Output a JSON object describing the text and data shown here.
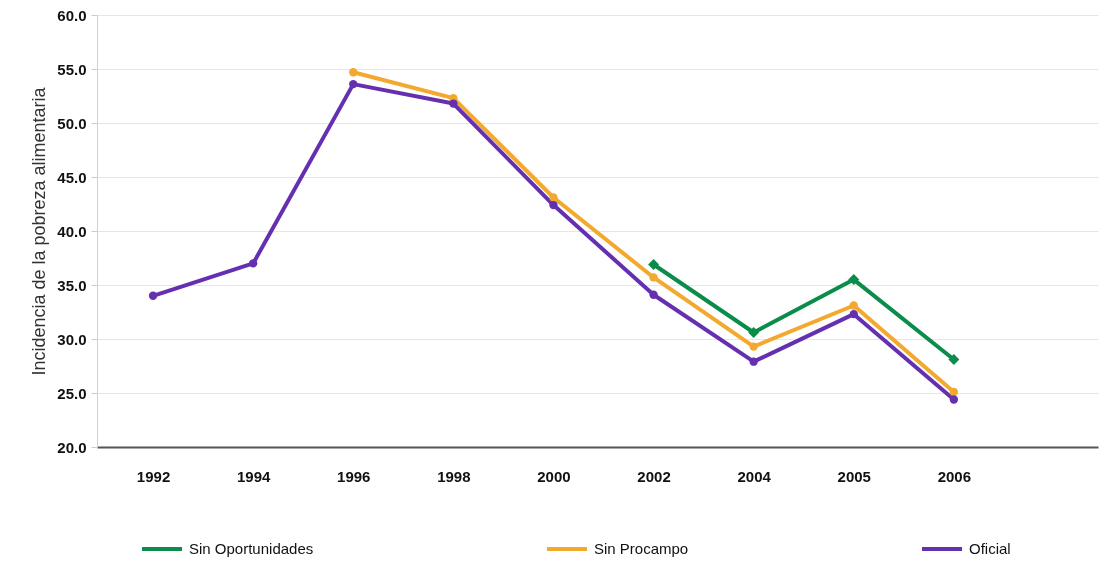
{
  "chart_data": {
    "type": "line",
    "ylabel": "Incidencia de la pobreza alimentaria",
    "categories": [
      "1992",
      "1994",
      "1996",
      "1998",
      "2000",
      "2002",
      "2004",
      "2005",
      "2006"
    ],
    "series": [
      {
        "name": "Sin Oportunidades",
        "color": "#0b8c4a",
        "marker": "diamond",
        "values": [
          null,
          null,
          null,
          null,
          null,
          36.9,
          30.6,
          35.5,
          28.1
        ]
      },
      {
        "name": "Sin Procampo",
        "color": "#f2a92e",
        "marker": "circle",
        "values": [
          null,
          null,
          54.7,
          52.3,
          43.1,
          35.7,
          29.3,
          33.1,
          25.1
        ]
      },
      {
        "name": "Oficial",
        "color": "#6530b0",
        "marker": "circle",
        "values": [
          34.0,
          37.0,
          53.6,
          51.8,
          42.4,
          34.1,
          27.9,
          32.3,
          24.4
        ]
      }
    ],
    "ylim": [
      20,
      60
    ],
    "yticks": [
      {
        "value": 20,
        "label": "20.0"
      },
      {
        "value": 25,
        "label": "25.0"
      },
      {
        "value": 30,
        "label": "30.0"
      },
      {
        "value": 35,
        "label": "35.0"
      },
      {
        "value": 40,
        "label": "40.0"
      },
      {
        "value": 45,
        "label": "45.0"
      },
      {
        "value": 50,
        "label": "50.0"
      },
      {
        "value": 55,
        "label": "55.0"
      },
      {
        "value": 60,
        "label": "60.0"
      }
    ],
    "grid": "y",
    "legend": "bottom",
    "line_style": "solid"
  }
}
